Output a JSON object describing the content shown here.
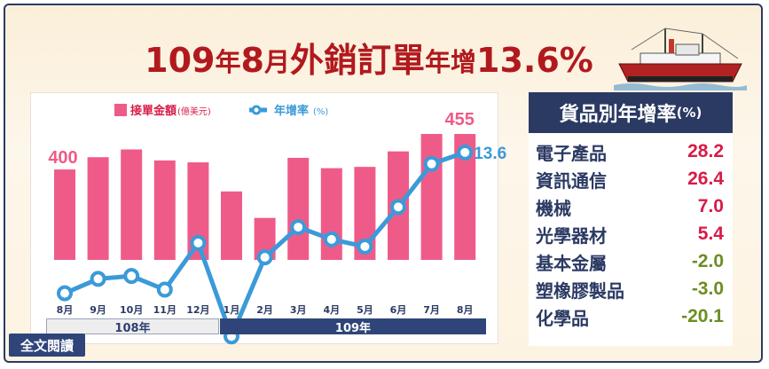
{
  "title": {
    "part1": "109",
    "part2": "年",
    "part3": "8",
    "part4": "月",
    "part5": "外銷訂單",
    "part6": "年增",
    "part7": "13.6%"
  },
  "legend": {
    "bar_label": "接單金額",
    "bar_unit": "(億美元)",
    "line_label": "年增率",
    "line_unit": "(%)"
  },
  "chart_data": {
    "type": "bar+line",
    "categories": [
      "8月",
      "9月",
      "10月",
      "11月",
      "12月",
      "1月",
      "2月",
      "3月",
      "4月",
      "5月",
      "6月",
      "7月",
      "8月"
    ],
    "series": [
      {
        "name": "接單金額",
        "unit": "億美元",
        "type": "bar",
        "values": [
          400,
          419,
          431,
          414,
          411,
          366,
          325,
          418,
          402,
          404,
          428,
          455,
          455
        ]
      },
      {
        "name": "年增率",
        "unit": "%",
        "type": "line",
        "values": [
          -6.0,
          -4.0,
          -3.6,
          -5.5,
          1.0,
          -12.0,
          -1.0,
          3.2,
          1.5,
          0.5,
          6.0,
          12.0,
          13.6
        ]
      }
    ],
    "data_labels": {
      "first_bar": "400",
      "last_bar": "455",
      "last_line": "13.6"
    },
    "year_groups": [
      {
        "label": "108年",
        "months": [
          "8月",
          "9月",
          "10月",
          "11月",
          "12月"
        ]
      },
      {
        "label": "109年",
        "months": [
          "1月",
          "2月",
          "3月",
          "4月",
          "5月",
          "6月",
          "7月",
          "8月"
        ]
      }
    ],
    "grid": false,
    "legend_position": "top-left",
    "colors": {
      "bar": "#ef5b88",
      "line": "#3b9ad9",
      "marker_fill": "#ffffff"
    }
  },
  "table": {
    "header": "貨品別年增率",
    "header_unit": "(%)",
    "rows": [
      {
        "name": "電子產品",
        "value": "28.2",
        "sign": "pos"
      },
      {
        "name": "資訊通信",
        "value": "26.4",
        "sign": "pos"
      },
      {
        "name": "機械",
        "value": "7.0",
        "sign": "pos"
      },
      {
        "name": "光學器材",
        "value": "5.4",
        "sign": "pos"
      },
      {
        "name": "基本金屬",
        "value": "-2.0",
        "sign": "neg"
      },
      {
        "name": "塑橡膠製品",
        "value": "-3.0",
        "sign": "neg"
      },
      {
        "name": "化學品",
        "value": "-20.1",
        "sign": "neg"
      }
    ]
  },
  "full_text_link": "全文閱讀",
  "colors": {
    "title": "#b1191e",
    "navy": "#2b3a63",
    "positive": "#d81b47",
    "negative": "#6b8e23"
  }
}
